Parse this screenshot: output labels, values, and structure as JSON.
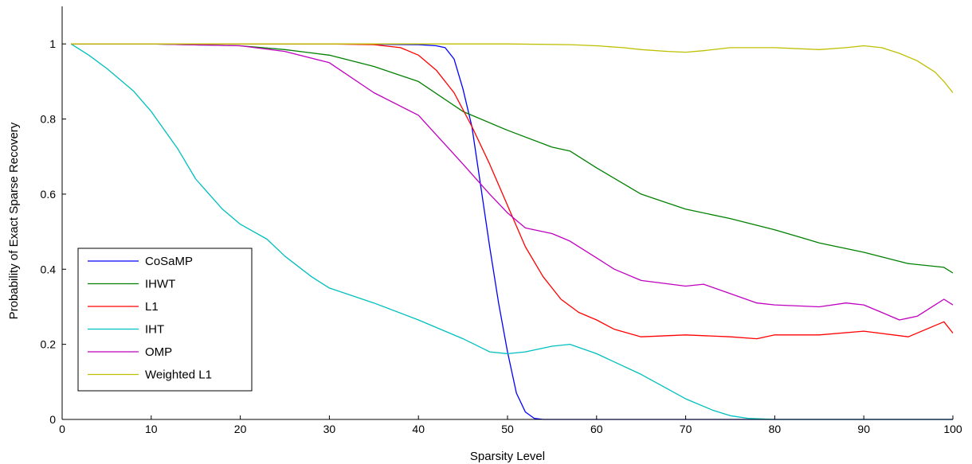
{
  "chart_data": {
    "type": "line",
    "title": "",
    "xlabel": "Sparsity Level",
    "ylabel": "Probability of Exact Sparse Recovery",
    "xlim": [
      0,
      100
    ],
    "ylim": [
      0,
      1.1
    ],
    "xticks": [
      0,
      10,
      20,
      30,
      40,
      50,
      60,
      70,
      80,
      90,
      100
    ],
    "yticks": [
      0,
      0.2,
      0.4,
      0.6,
      0.8,
      1
    ],
    "ytick_labels": [
      "0",
      "0.2",
      "0.4",
      "0.6",
      "0.8",
      "1"
    ],
    "grid": false,
    "legend_position": "bottom-left",
    "series": [
      {
        "name": "CoSaMP",
        "color": "#0000ff",
        "x": [
          1,
          10,
          20,
          30,
          40,
          42,
          43,
          44,
          45,
          46,
          47,
          48,
          49,
          50,
          51,
          52,
          53,
          54,
          60,
          70,
          80,
          90,
          100
        ],
        "y": [
          1,
          1,
          1,
          1,
          0.998,
          0.995,
          0.99,
          0.96,
          0.88,
          0.78,
          0.62,
          0.46,
          0.31,
          0.18,
          0.07,
          0.02,
          0.003,
          0,
          0,
          0,
          0,
          0,
          0
        ]
      },
      {
        "name": "IHWT",
        "color": "#008000",
        "x": [
          1,
          10,
          20,
          25,
          30,
          35,
          40,
          45,
          50,
          55,
          57,
          60,
          65,
          70,
          75,
          80,
          85,
          90,
          95,
          99,
          100
        ],
        "y": [
          1,
          1,
          0.995,
          0.985,
          0.97,
          0.94,
          0.9,
          0.82,
          0.77,
          0.725,
          0.715,
          0.67,
          0.6,
          0.56,
          0.535,
          0.505,
          0.47,
          0.445,
          0.415,
          0.405,
          0.39
        ]
      },
      {
        "name": "L1",
        "color": "#ff0000",
        "x": [
          1,
          10,
          20,
          30,
          35,
          38,
          40,
          42,
          44,
          46,
          48,
          50,
          52,
          54,
          56,
          58,
          60,
          62,
          65,
          70,
          75,
          78,
          80,
          85,
          90,
          95,
          99,
          100
        ],
        "y": [
          1,
          1,
          1,
          1,
          0.998,
          0.99,
          0.97,
          0.93,
          0.87,
          0.78,
          0.68,
          0.57,
          0.46,
          0.38,
          0.32,
          0.285,
          0.265,
          0.24,
          0.22,
          0.225,
          0.22,
          0.215,
          0.225,
          0.225,
          0.235,
          0.22,
          0.26,
          0.23
        ]
      },
      {
        "name": "IHT",
        "color": "#00bfbf",
        "x": [
          1,
          3,
          5,
          8,
          10,
          13,
          15,
          18,
          20,
          23,
          25,
          28,
          30,
          35,
          40,
          45,
          48,
          50,
          52,
          55,
          57,
          60,
          65,
          70,
          73,
          75,
          77,
          80,
          90,
          100
        ],
        "y": [
          1,
          0.97,
          0.935,
          0.875,
          0.82,
          0.72,
          0.64,
          0.56,
          0.52,
          0.48,
          0.435,
          0.38,
          0.35,
          0.31,
          0.265,
          0.215,
          0.18,
          0.175,
          0.18,
          0.195,
          0.2,
          0.175,
          0.12,
          0.055,
          0.025,
          0.01,
          0.003,
          0,
          0,
          0
        ]
      },
      {
        "name": "OMP",
        "color": "#bf00bf",
        "x": [
          1,
          10,
          20,
          25,
          30,
          35,
          40,
          45,
          48,
          50,
          52,
          55,
          57,
          60,
          62,
          65,
          70,
          72,
          75,
          78,
          80,
          85,
          88,
          90,
          92,
          94,
          96,
          99,
          100
        ],
        "y": [
          1,
          1,
          0.995,
          0.98,
          0.95,
          0.87,
          0.81,
          0.68,
          0.6,
          0.55,
          0.51,
          0.495,
          0.475,
          0.43,
          0.4,
          0.37,
          0.355,
          0.36,
          0.335,
          0.31,
          0.305,
          0.3,
          0.31,
          0.305,
          0.285,
          0.265,
          0.275,
          0.32,
          0.305
        ]
      },
      {
        "name": "Weighted L1",
        "color": "#bfbf00",
        "x": [
          1,
          10,
          20,
          30,
          40,
          50,
          57,
          60,
          63,
          65,
          68,
          70,
          72,
          75,
          80,
          85,
          88,
          90,
          92,
          94,
          96,
          98,
          99,
          100
        ],
        "y": [
          1,
          1,
          1,
          1,
          1,
          1,
          0.998,
          0.995,
          0.99,
          0.985,
          0.98,
          0.978,
          0.982,
          0.99,
          0.99,
          0.985,
          0.99,
          0.995,
          0.99,
          0.975,
          0.955,
          0.925,
          0.9,
          0.87
        ]
      }
    ]
  }
}
